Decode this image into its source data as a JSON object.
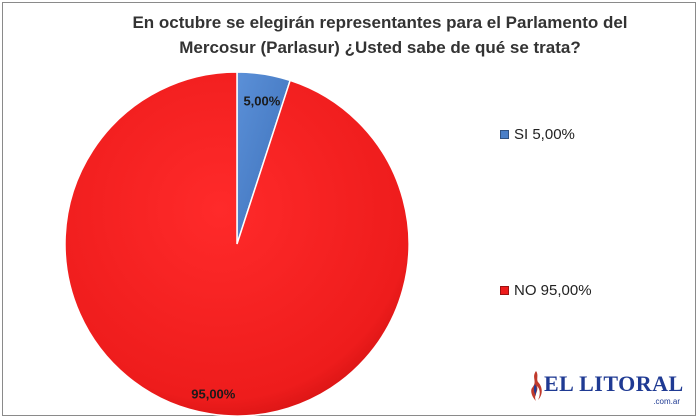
{
  "chart_data": {
    "type": "pie",
    "title_lines": [
      "En octubre se elegirán representantes para el Parlamento del",
      "Mercosur (Parlasur) ¿Usted sabe de qué se trata?"
    ],
    "slices": [
      {
        "category": "SI",
        "value": 5.0,
        "label": "5,00%",
        "legend": "SI 5,00%",
        "color": "#4a7fc8"
      },
      {
        "category": "NO",
        "value": 95.0,
        "label": "95,00%",
        "legend": "NO 95,00%",
        "color": "#ee1c1c"
      }
    ],
    "start_angle_deg": 0,
    "direction": "clockwise",
    "legend_position": "right"
  },
  "branding": {
    "logo_text": "EL LITORAL",
    "logo_domain": ".com.ar",
    "logo_icon": "flame-icon",
    "accent_color": "#1f3a93"
  }
}
